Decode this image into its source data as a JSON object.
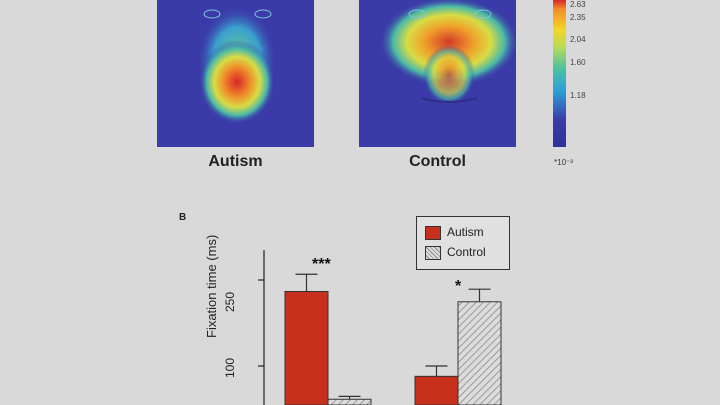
{
  "panel_a": {
    "captions": [
      "Autism",
      "Control"
    ],
    "colorbar": {
      "ticks": [
        "2.63",
        "2.35",
        "2.04",
        "1.60",
        "1.18"
      ],
      "unit": "*10⁻³"
    },
    "colors": {
      "background": "#3a3aa8",
      "hot": "#d7262a"
    }
  },
  "chart_data": {
    "type": "bar",
    "panel_label": "B",
    "ylabel": "Fixation time (ms)",
    "yticks": [
      "100",
      "250"
    ],
    "ylim": [
      25,
      330
    ],
    "series": [
      {
        "name": "Autism",
        "color": "#c8301e",
        "pattern": "solid",
        "values": [
          230,
          82
        ],
        "errors": [
          30,
          18
        ]
      },
      {
        "name": "Control",
        "color": "#cfcfcf",
        "pattern": "hatched",
        "values": [
          42,
          212
        ],
        "errors": [
          5,
          22
        ]
      }
    ],
    "categories": [
      "",
      ""
    ],
    "significance": [
      "***",
      "*"
    ],
    "legend": {
      "position": "top-right"
    }
  }
}
